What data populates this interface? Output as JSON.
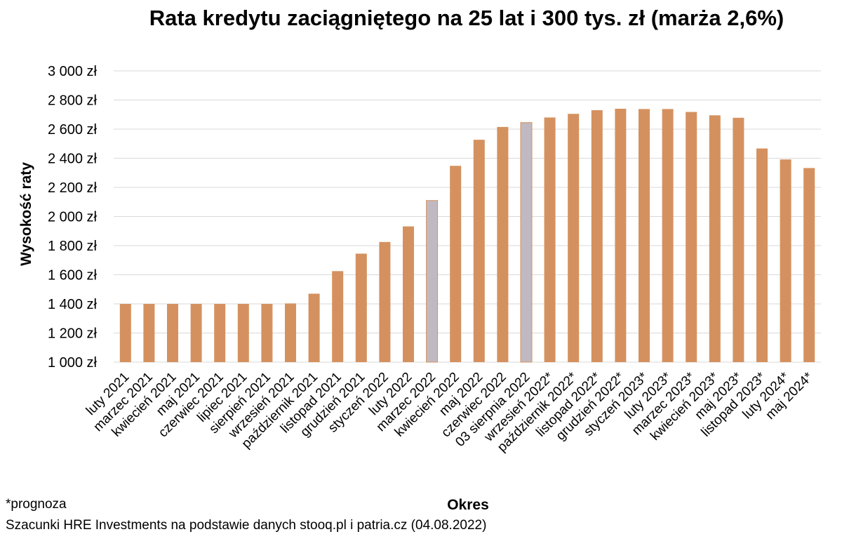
{
  "chart_data": {
    "type": "bar",
    "title": "Rata kredytu zaciągniętego na 25 lat i 300 tys. zł (marża 2,6%)",
    "xlabel": "Okres",
    "ylabel": "Wysokość raty",
    "ylim": [
      1000,
      3000
    ],
    "yticks": [
      "1 000 zł",
      "1 200 zł",
      "1 400 zł",
      "1 600 zł",
      "1 800 zł",
      "2 000 zł",
      "2 200 zł",
      "2 400 zł",
      "2 600 zł",
      "2 800 zł",
      "3 000 zł"
    ],
    "grid": true,
    "legend": "none",
    "bar_color": "#d4915f",
    "highlight_color": "#c0b9c1",
    "highlighted": [
      "marzec 2022",
      "03 sierpnia 2022"
    ],
    "categories": [
      "luty 2021",
      "marzec 2021",
      "kwiecień 2021",
      "maj 2021",
      "czerwiec 2021",
      "lipiec 2021",
      "sierpień 2021",
      "wrzesień 2021",
      "październik 2021",
      "listopad 2021",
      "grudzień 2021",
      "styczeń 2022",
      "luty 2022",
      "marzec 2022",
      "kwiecień 2022",
      "maj 2022",
      "czerwiec 2022",
      "03 sierpnia 2022",
      "wrzesień 2022*",
      "październik 2022*",
      "listopad 2022*",
      "grudzień 2022*",
      "styczeń 2023*",
      "luty 2023*",
      "marzec 2023*",
      "kwiecień 2023*",
      "maj 2023*",
      "listopad 2023*",
      "luty 2024*",
      "maj 2024*"
    ],
    "values": [
      1400,
      1400,
      1400,
      1400,
      1400,
      1400,
      1400,
      1403,
      1470,
      1625,
      1745,
      1825,
      1932,
      2110,
      2348,
      2527,
      2615,
      2645,
      2680,
      2705,
      2730,
      2740,
      2738,
      2738,
      2718,
      2695,
      2678,
      2467,
      2392,
      2333
    ]
  },
  "footnotes": {
    "forecast": "*prognoza",
    "source": "Szacunki HRE Investments na podstawie danych stooq.pl i patria.cz (04.08.2022)"
  }
}
